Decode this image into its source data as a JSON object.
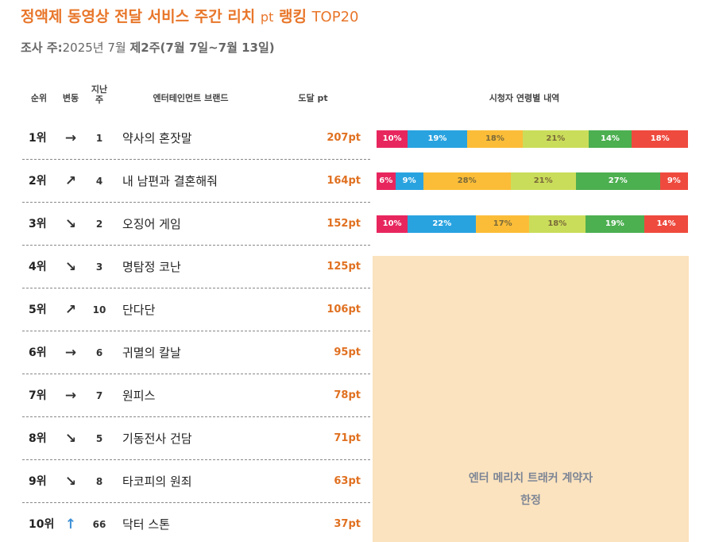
{
  "title": {
    "main": "정액제 동영상 전달 서비스 주간 리치",
    "unit": "pt",
    "rank_label": "랭킹",
    "top": "TOP20"
  },
  "survey": {
    "label": "조사 주:",
    "year": "2025년 7월 ",
    "week": "제2주",
    "range": "(7월 7일~7월 13일)"
  },
  "headers": {
    "rank": "순위",
    "change": "변동",
    "last_week": "지난\n주",
    "brand": "엔터테인먼트 브랜드",
    "reach": "도달 pt",
    "viewers": "시청자 연령별 내역"
  },
  "rows": [
    {
      "rank": "1위",
      "arrow": "→",
      "last": "1",
      "brand": "약사의 혼잣말",
      "pt": "207pt"
    },
    {
      "rank": "2위",
      "arrow": "↗",
      "last": "4",
      "brand": "내 남편과 결혼해줘",
      "pt": "164pt"
    },
    {
      "rank": "3위",
      "arrow": "↘",
      "last": "2",
      "brand": "오징어 게임",
      "pt": "152pt"
    },
    {
      "rank": "4위",
      "arrow": "↘",
      "last": "3",
      "brand": "명탐정 코난",
      "pt": "125pt"
    },
    {
      "rank": "5위",
      "arrow": "↗",
      "last": "10",
      "brand": "단다단",
      "pt": "106pt"
    },
    {
      "rank": "6위",
      "arrow": "→",
      "last": "6",
      "brand": "귀멸의 칼날",
      "pt": "95pt"
    },
    {
      "rank": "7위",
      "arrow": "→",
      "last": "7",
      "brand": "원피스",
      "pt": "78pt"
    },
    {
      "rank": "8위",
      "arrow": "↘",
      "last": "5",
      "brand": "기동전사 건담",
      "pt": "71pt"
    },
    {
      "rank": "9위",
      "arrow": "↘",
      "last": "8",
      "brand": "타코피의 원죄",
      "pt": "63pt"
    },
    {
      "rank": "10위",
      "arrow": "↑",
      "last": "66",
      "brand": "닥터 스톤",
      "pt": "37pt"
    }
  ],
  "age_colors": [
    "#e8265e",
    "#29a3e0",
    "#fbbd38",
    "#cadd5a",
    "#4caf50",
    "#ef4a3e"
  ],
  "age_bars": [
    [
      10,
      19,
      18,
      21,
      14,
      18
    ],
    [
      6,
      9,
      28,
      21,
      27,
      9
    ],
    [
      10,
      22,
      17,
      18,
      19,
      14
    ]
  ],
  "locked_text": "엔터 메리치 트래커 계약자\n한정"
}
